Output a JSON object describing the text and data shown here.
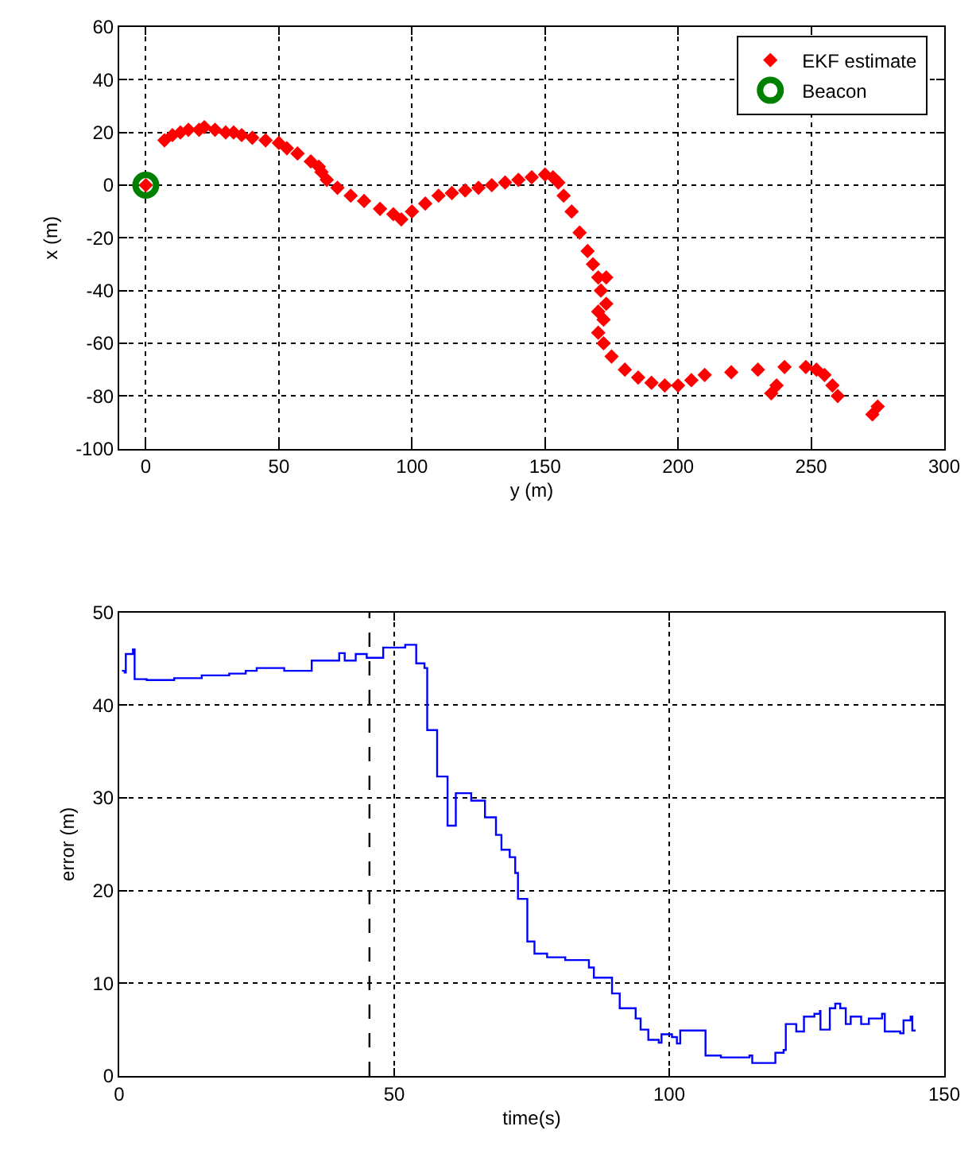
{
  "chart_data": [
    {
      "type": "scatter",
      "xlabel": "y (m)",
      "ylabel": "x (m)",
      "xlim": [
        -10,
        300
      ],
      "xticks": [
        0,
        50,
        100,
        150,
        200,
        250,
        300
      ],
      "ylim": [
        -100,
        60
      ],
      "yticks": [
        -100,
        -80,
        -60,
        -40,
        -20,
        0,
        20,
        40,
        60
      ],
      "grid": true,
      "legend": "top right",
      "series": [
        {
          "name": "EKF estimate",
          "color": "#ff0000",
          "marker": "diamond",
          "x": [
            0,
            7,
            10,
            13,
            16,
            20,
            22,
            26,
            30,
            33,
            36,
            40,
            45,
            50,
            53,
            57,
            62,
            65,
            66,
            68,
            72,
            77,
            82,
            88,
            93,
            96,
            100,
            105,
            110,
            115,
            120,
            125,
            130,
            135,
            140,
            145,
            150,
            153,
            155,
            157,
            160,
            163,
            166,
            168,
            170,
            173,
            171,
            173,
            170,
            172,
            170,
            172,
            175,
            180,
            185,
            190,
            195,
            200,
            205,
            210,
            220,
            230,
            240,
            248,
            252,
            255,
            258,
            260,
            235,
            237,
            273,
            275
          ],
          "values": [
            0,
            17,
            19,
            20,
            21,
            21,
            22,
            21,
            20,
            20,
            19,
            18,
            17,
            16,
            14,
            12,
            9,
            7,
            5,
            2,
            -1,
            -4,
            -6,
            -9,
            -11,
            -13,
            -10,
            -7,
            -4,
            -3,
            -2,
            -1,
            0,
            1,
            2,
            3,
            4,
            3,
            1,
            -4,
            -10,
            -18,
            -25,
            -30,
            -35,
            -35,
            -40,
            -45,
            -48,
            -51,
            -56,
            -60,
            -65,
            -70,
            -73,
            -75,
            -76,
            -76,
            -74,
            -72,
            -71,
            -70,
            -69,
            -69,
            -70,
            -72,
            -76,
            -80,
            -79,
            -76,
            -87,
            -84
          ]
        },
        {
          "name": "Beacon",
          "color": "#008000",
          "marker": "circle",
          "x": [
            0
          ],
          "values": [
            0
          ]
        }
      ]
    },
    {
      "type": "step",
      "xlabel": "time(s)",
      "ylabel": "error (m)",
      "xlim": [
        0,
        150
      ],
      "xticks": [
        0,
        50,
        100,
        150
      ],
      "ylim": [
        0,
        50
      ],
      "yticks": [
        0,
        10,
        20,
        30,
        40,
        50
      ],
      "grid": true,
      "legend": false,
      "ref_lines": [
        {
          "axis": "x",
          "value": 45.5,
          "color": "#000000",
          "line_style": "dashed"
        }
      ],
      "series": [
        {
          "color": "#0000ff",
          "marker": "none",
          "x": [
            0.5,
            1,
            1.2,
            2.5,
            2.8,
            5,
            10,
            15,
            20,
            23,
            25,
            30,
            35,
            40,
            41,
            43,
            45,
            48,
            52,
            54,
            55.5,
            56,
            57.8,
            59.7,
            61.2,
            64,
            66.5,
            68.5,
            69.5,
            71,
            72,
            72.5,
            74.2,
            75.5,
            77.8,
            81.1,
            85.4,
            86.3,
            89.6,
            91,
            93.9,
            94.8,
            96.2,
            98.1,
            98.6,
            100.5,
            101.4,
            102,
            106.6,
            109.4,
            114.6,
            115.1,
            119.3,
            120.8,
            121.2,
            123.1,
            124.5,
            126.4,
            127.4,
            127.5,
            129.2,
            130.2,
            131.1,
            132.1,
            133,
            134.9,
            136.3,
            138.7,
            139.2,
            142,
            142.6,
            143.9,
            144.2,
            144.8
          ],
          "values": [
            43.7,
            43.5,
            45.5,
            46,
            42.8,
            42.7,
            42.9,
            43.2,
            43.4,
            43.7,
            44,
            43.7,
            44.8,
            45.6,
            44.8,
            45.5,
            45.1,
            46.2,
            46.5,
            44.5,
            44,
            37.3,
            32.3,
            27,
            30.5,
            29.7,
            27.9,
            26,
            24.4,
            23.6,
            21.9,
            19.1,
            14.5,
            13.2,
            12.8,
            12.5,
            11.7,
            10.6,
            8.9,
            7.3,
            6.2,
            5,
            3.9,
            3.6,
            4.5,
            4.2,
            3.5,
            4.9,
            2.2,
            2,
            2.2,
            1.4,
            2.5,
            2.8,
            5.6,
            4.8,
            6.4,
            6.7,
            7,
            5,
            7.3,
            7.8,
            7.3,
            5.6,
            6.4,
            5.6,
            6.2,
            6.7,
            4.8,
            4.6,
            6,
            6.4,
            4.9,
            4.9
          ]
        }
      ]
    }
  ]
}
